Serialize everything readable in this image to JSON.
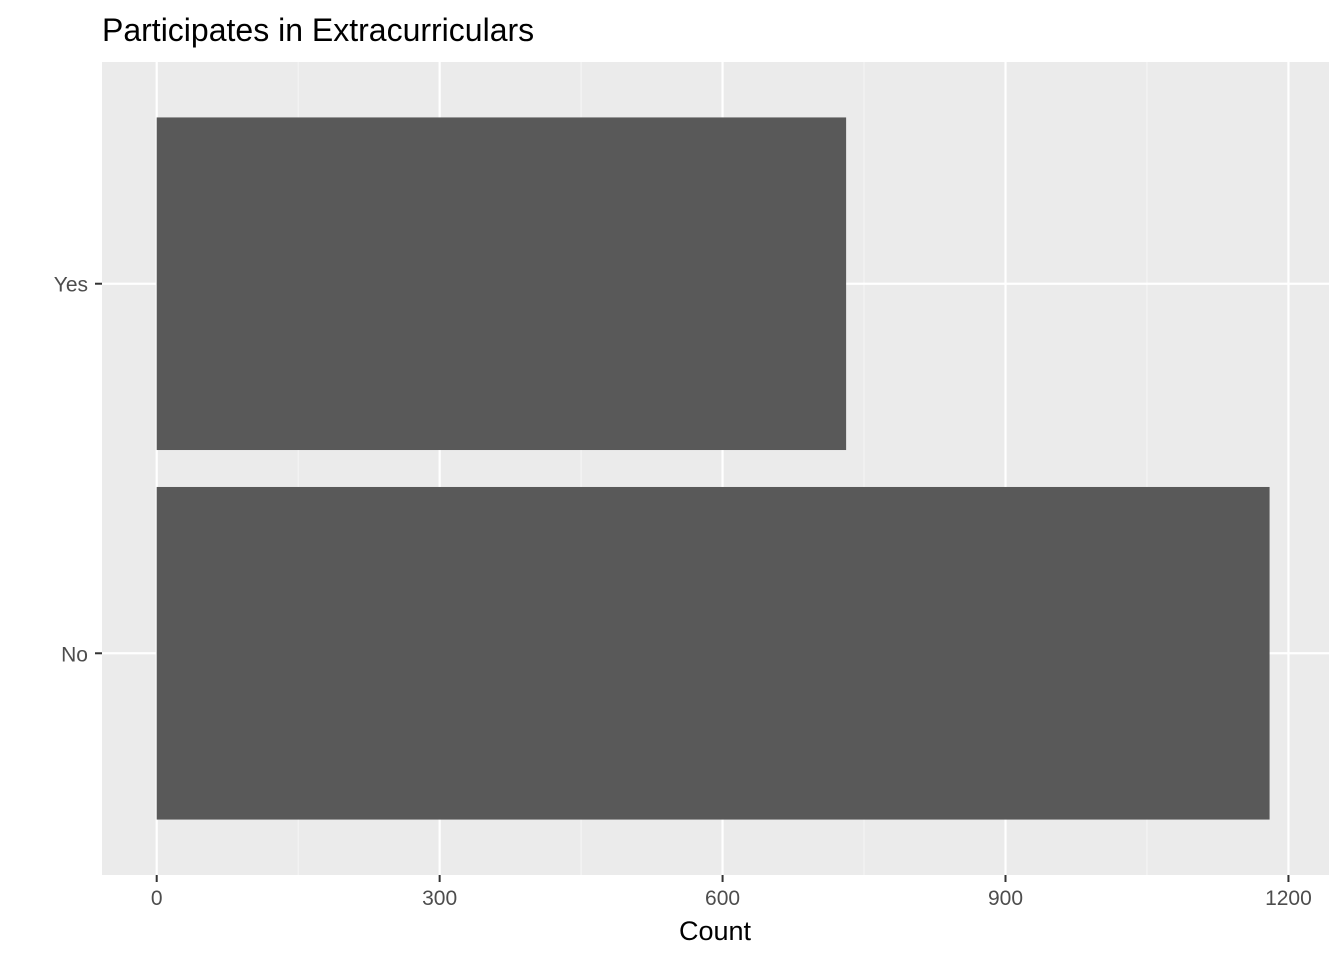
{
  "chart_data": {
    "type": "bar",
    "orientation": "horizontal",
    "title": "Participates in Extracurriculars",
    "xlabel": "Count",
    "ylabel": "",
    "categories": [
      "No",
      "Yes"
    ],
    "values": [
      1180,
      731
    ],
    "xlim": [
      -58,
      1243
    ],
    "x_ticks": [
      0,
      300,
      600,
      900,
      1200
    ],
    "x_tick_labels": [
      "0",
      "300",
      "600",
      "900",
      "1200"
    ],
    "x_minor_ticks": [
      150,
      450,
      750,
      1050
    ],
    "grid": true,
    "legend": "none",
    "colors": {
      "bar": "#595959",
      "panel": "#ebebeb",
      "grid_major": "#ffffff",
      "grid_minor": "#f5f5f5",
      "tick_text": "#4d4d4d",
      "tick_mark": "#333333"
    }
  }
}
